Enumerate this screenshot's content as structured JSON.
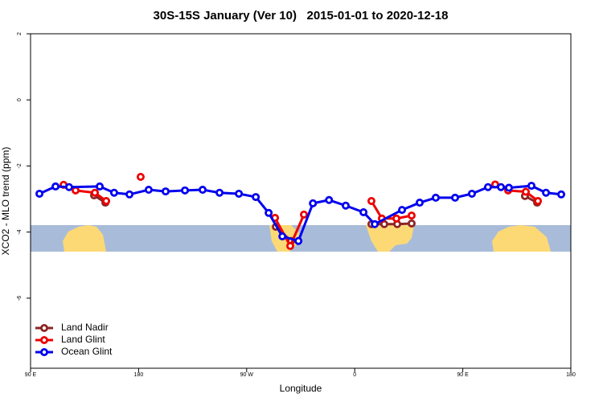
{
  "chart_data": {
    "type": "line",
    "title": "30S-15S January (Ver 10)   2015-01-01 to 2020-12-18",
    "xlabel": "Longitude",
    "ylabel": "XCO2 - MLO trend (ppm)",
    "xlim": [
      90,
      540
    ],
    "ylim": [
      -8.12,
      2.0
    ],
    "xticks": [
      {
        "value": 90,
        "label": "90 E"
      },
      180,
      {
        "value": 270,
        "label": "90 W"
      },
      {
        "value": 360,
        "label": "0"
      },
      {
        "value": 450,
        "label": "90 E"
      },
      {
        "value": 540,
        "label": "180"
      }
    ],
    "yticks": [
      2,
      0,
      -2,
      -4,
      -6
    ],
    "legend": "bottom-left",
    "series": [
      {
        "name": "Land Nadir",
        "color": "#8b2525",
        "x": [
          142.9,
          152.3,
          null,
          294.3,
          307.0,
          null,
          373.9,
          384.6,
          395.4,
          407.4,
          null,
          501.8,
          511.9
        ],
        "values": [
          -2.89,
          -3.11,
          null,
          -3.84,
          -4.27,
          null,
          -3.76,
          -3.76,
          -3.76,
          -3.74,
          null,
          -2.91,
          -3.11
        ]
      },
      {
        "name": "Land Glint",
        "color": "#ee0000",
        "x": [
          117.5,
          127.5,
          143.6,
          153.0,
          null,
          181.7,
          null,
          293.6,
          306.3,
          317.7,
          null,
          373.9,
          382.6,
          394.7,
          407.4,
          null,
          477.0,
          487.8,
          502.5,
          512.6
        ],
        "values": [
          -2.57,
          -2.74,
          -2.81,
          -3.06,
          null,
          -2.33,
          null,
          -3.57,
          -4.42,
          -3.47,
          null,
          -3.06,
          -3.59,
          -3.59,
          -3.5,
          null,
          -2.56,
          -2.74,
          -2.78,
          -3.06
        ]
      },
      {
        "name": "Ocean Glint",
        "color": "#0000ee",
        "x": [
          97.4,
          110.8,
          122.1,
          147.6,
          159.6,
          172.4,
          188.4,
          202.5,
          218.6,
          233.3,
          247.4,
          263.5,
          277.6,
          288.3,
          299.7,
          313.1,
          325.2,
          338.6,
          352.5,
          367.3,
          376.7,
          399.4,
          414.1,
          427.5,
          443.6,
          457.6,
          471.0,
          481.8,
          488.4,
          507.2,
          519.3,
          532.0
        ],
        "values": [
          -2.84,
          -2.62,
          -2.64,
          -2.62,
          -2.81,
          -2.86,
          -2.72,
          -2.77,
          -2.74,
          -2.72,
          -2.81,
          -2.84,
          -2.94,
          -3.42,
          -4.13,
          -4.27,
          -3.13,
          -3.03,
          -3.2,
          -3.4,
          -3.76,
          -3.33,
          -3.11,
          -2.96,
          -2.96,
          -2.84,
          -2.64,
          -2.64,
          -2.66,
          -2.6,
          -2.81,
          -2.86
        ]
      }
    ]
  }
}
